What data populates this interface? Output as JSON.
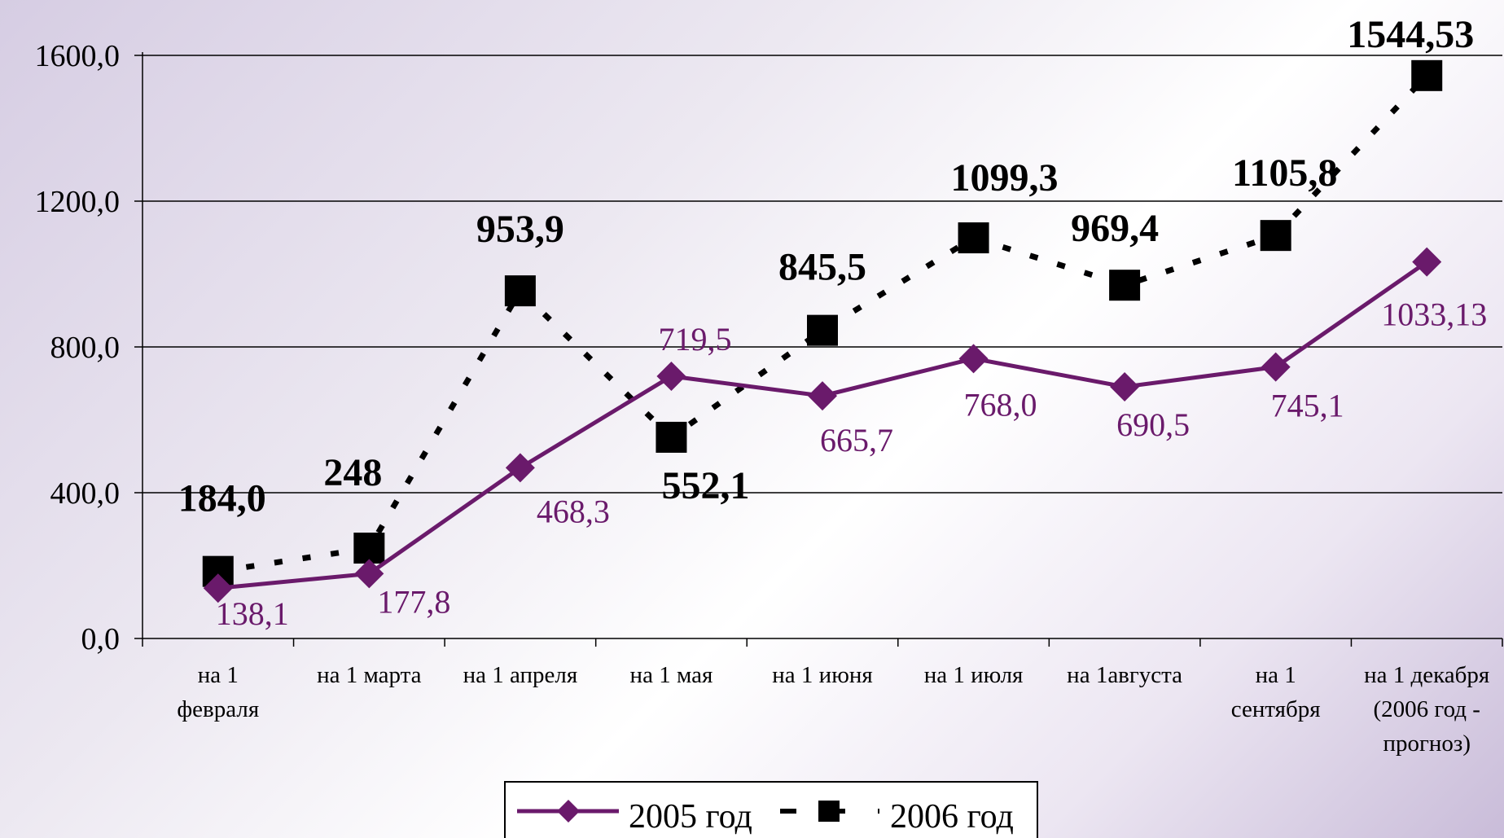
{
  "colors": {
    "series2005": "#6a1a6b",
    "series2006": "#000000",
    "grid": "#000000"
  },
  "chart_data": {
    "type": "line",
    "title": "",
    "xlabel": "",
    "ylabel": "",
    "ylim": [
      0,
      1600
    ],
    "yticks": [
      "0,0",
      "400,0",
      "800,0",
      "1200,0",
      "1600,0"
    ],
    "ytick_values": [
      0,
      400,
      800,
      1200,
      1600
    ],
    "grid": true,
    "legend": "bottom",
    "categories": [
      [
        "на 1",
        "февраля"
      ],
      [
        "на 1 марта"
      ],
      [
        "на 1 апреля"
      ],
      [
        "на 1 мая"
      ],
      [
        "на 1 июня"
      ],
      [
        "на 1 июля"
      ],
      [
        "на 1августа"
      ],
      [
        "на 1",
        "сентября"
      ],
      [
        "на 1 декабря",
        "(2006 год -",
        "прогноз)"
      ]
    ],
    "series": [
      {
        "name": "2005 год",
        "marker": "diamond",
        "line": "solid",
        "values": [
          138.1,
          177.8,
          468.3,
          719.5,
          665.7,
          768.0,
          690.5,
          745.1,
          1033.13
        ],
        "labels": [
          "138,1",
          "177,8",
          "468,3",
          "719,5",
          "665,7",
          "768,0",
          "690,5",
          "745,1",
          "1033,13"
        ]
      },
      {
        "name": "2006 год",
        "marker": "square",
        "line": "dashed",
        "values": [
          184.0,
          248,
          953.9,
          552.1,
          845.5,
          1099.3,
          969.4,
          1105.8,
          1544.53
        ],
        "labels": [
          "184,0",
          "248",
          "953,9",
          "552,1",
          "845,5",
          "1099,3",
          "969,4",
          "1105,8",
          "1544,53"
        ]
      }
    ]
  }
}
